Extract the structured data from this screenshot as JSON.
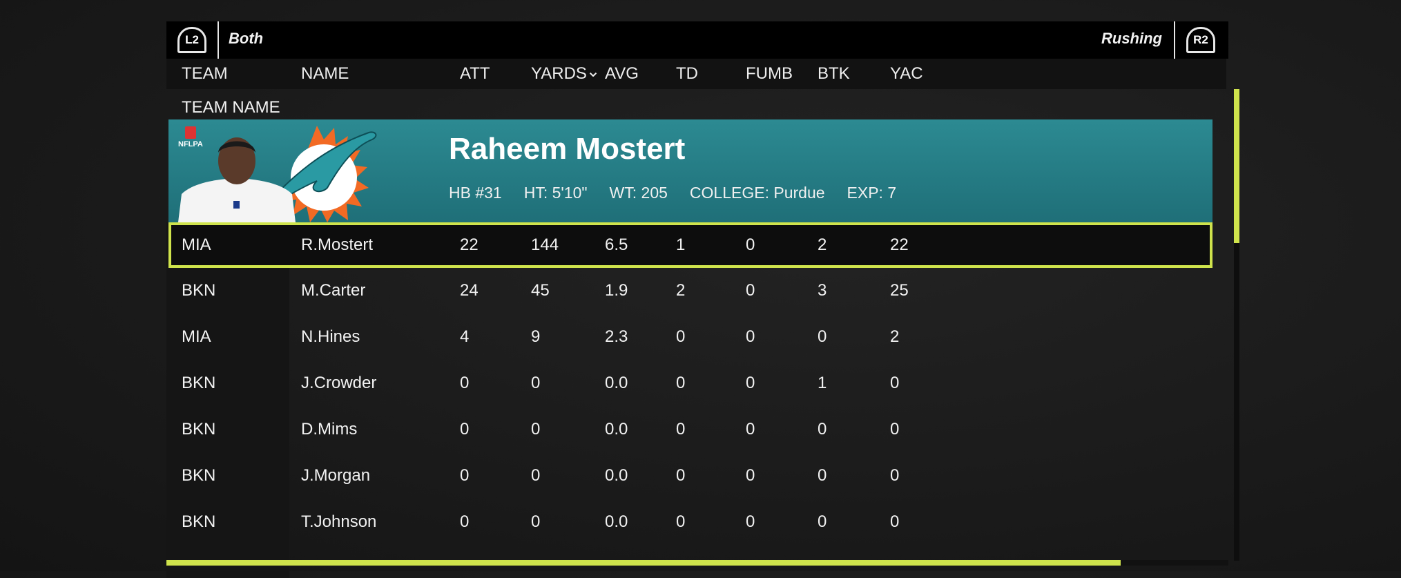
{
  "topbar": {
    "left_trigger": "L2",
    "filter": "Both",
    "category": "Rushing",
    "right_trigger": "R2"
  },
  "columns": [
    "TEAM",
    "NAME",
    "ATT",
    "YARDS",
    "AVG",
    "TD",
    "FUMB",
    "BTK",
    "YAC"
  ],
  "sort_indicator": "⌄",
  "group_label": "TEAM NAME",
  "player": {
    "name": "Raheem Mostert",
    "position_number": "HB #31",
    "height": "HT: 5'10\"",
    "weight": "WT: 205",
    "college": "COLLEGE: Purdue",
    "experience": "EXP: 7",
    "badge": "NFLPA"
  },
  "colors": {
    "accent": "#cfe34c",
    "banner": "#267d86",
    "dolphins_orange": "#f26a24"
  },
  "rows": [
    [
      "MIA",
      "R.Mostert",
      "22",
      "144",
      "6.5",
      "1",
      "0",
      "2",
      "22"
    ],
    [
      "BKN",
      "M.Carter",
      "24",
      "45",
      "1.9",
      "2",
      "0",
      "3",
      "25"
    ],
    [
      "MIA",
      "N.Hines",
      "4",
      "9",
      "2.3",
      "0",
      "0",
      "0",
      "2"
    ],
    [
      "BKN",
      "J.Crowder",
      "0",
      "0",
      "0.0",
      "0",
      "0",
      "1",
      "0"
    ],
    [
      "BKN",
      "D.Mims",
      "0",
      "0",
      "0.0",
      "0",
      "0",
      "0",
      "0"
    ],
    [
      "BKN",
      "J.Morgan",
      "0",
      "0",
      "0.0",
      "0",
      "0",
      "0",
      "0"
    ],
    [
      "BKN",
      "T.Johnson",
      "0",
      "0",
      "0.0",
      "0",
      "0",
      "0",
      "0"
    ]
  ],
  "selected_row": 0
}
